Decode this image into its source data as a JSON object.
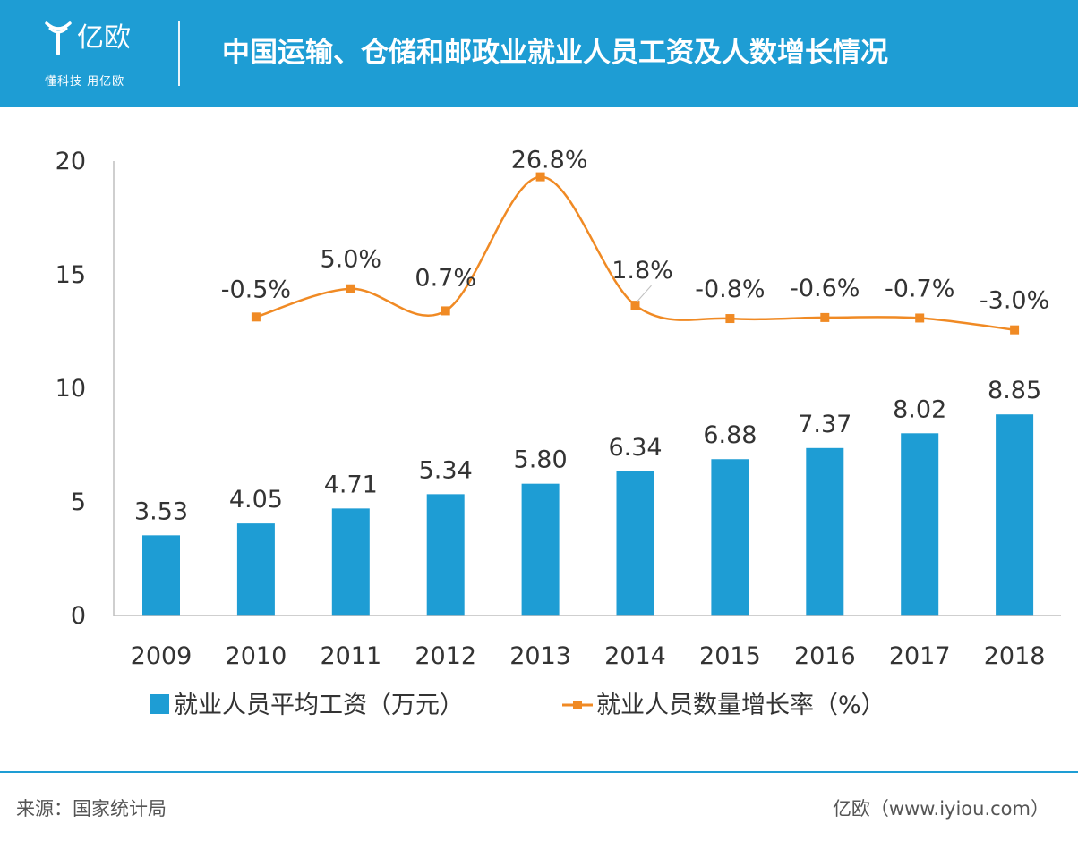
{
  "header": {
    "title": "中国运输、仓储和邮政业就业人员工资及人数增长情况",
    "logo_name": "亿欧",
    "logo_tagline": "懂科技 用亿欧"
  },
  "footer": {
    "source": "来源：国家统计局",
    "credit": "亿欧（www.iyiou.com）"
  },
  "colors": {
    "accent": "#1E9DD4",
    "bar": "#1E9DD4",
    "line": "#F08A24"
  },
  "chart_data": {
    "type": "bar",
    "categories": [
      "2009",
      "2010",
      "2011",
      "2012",
      "2013",
      "2014",
      "2015",
      "2016",
      "2017",
      "2018"
    ],
    "ylim": [
      0,
      20
    ],
    "yticks": [
      "0",
      "5",
      "10",
      "15",
      "20"
    ],
    "legend_position": "bottom",
    "grid": false,
    "series": [
      {
        "name": "就业人员平均工资（万元）",
        "type": "bar",
        "values": [
          3.53,
          4.05,
          4.71,
          5.34,
          5.8,
          6.34,
          6.88,
          7.37,
          8.02,
          8.85
        ],
        "labels": [
          "3.53",
          "4.05",
          "4.71",
          "5.34",
          "5.80",
          "6.34",
          "6.88",
          "7.37",
          "8.02",
          "8.85"
        ]
      },
      {
        "name": "就业人员数量增长率（%）",
        "type": "line",
        "smooth": true,
        "values": [
          null,
          -0.5,
          5.0,
          0.7,
          26.8,
          1.8,
          -0.8,
          -0.6,
          -0.7,
          -3.0
        ],
        "labels": [
          null,
          "-0.5%",
          "5.0%",
          "0.7%",
          "26.8%",
          "1.8%",
          "-0.8%",
          "-0.6%",
          "-0.7%",
          "-3.0%"
        ]
      }
    ]
  }
}
